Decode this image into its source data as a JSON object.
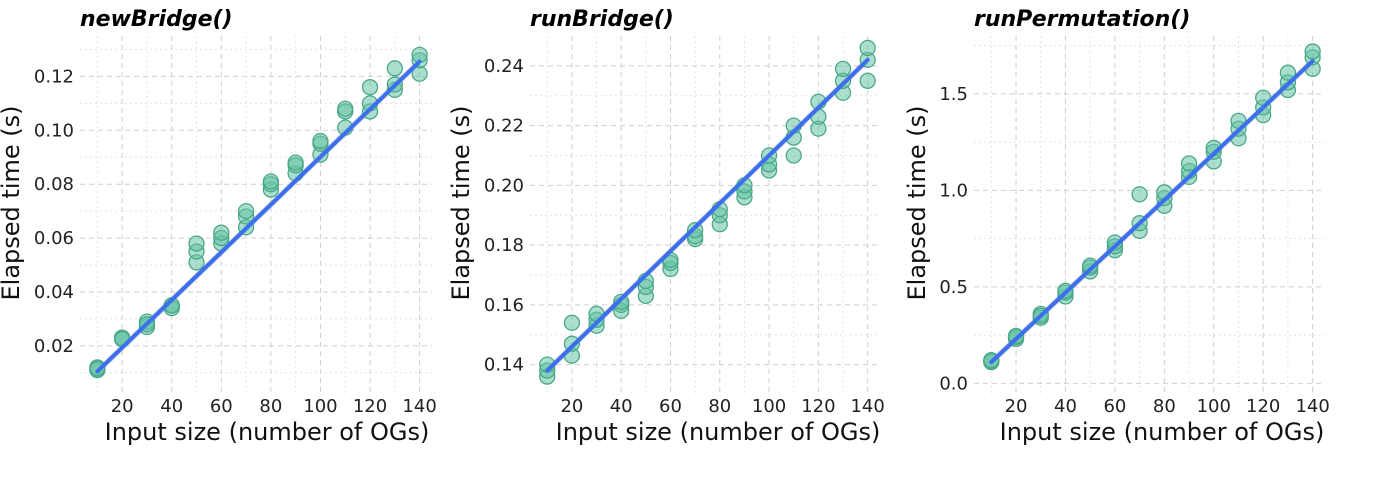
{
  "chart_data": [
    {
      "type": "scatter",
      "title": "newBridge()",
      "xlabel": "Input size (number of OGs)",
      "ylabel": "Elapsed time (s)",
      "xlim": [
        3,
        145
      ],
      "ylim": [
        0.0025,
        0.135
      ],
      "xticks": [
        20,
        40,
        60,
        80,
        100,
        120,
        140
      ],
      "xtick_labels": [
        "20",
        "40",
        "60",
        "80",
        "100",
        "120",
        "140"
      ],
      "yticks": [
        0.02,
        0.04,
        0.06,
        0.08,
        0.1,
        0.12
      ],
      "ytick_labels": [
        "0.02",
        "0.04",
        "0.06",
        "0.08",
        "0.10",
        "0.12"
      ],
      "grid": true,
      "fit": {
        "x": [
          10,
          140
        ],
        "y": [
          0.0105,
          0.1255
        ]
      },
      "series": [
        {
          "x": [
            10,
            10,
            10,
            20,
            20,
            20,
            30,
            30,
            30,
            40,
            40,
            40,
            50,
            50,
            50,
            60,
            60,
            60,
            70,
            70,
            70,
            80,
            80,
            80,
            90,
            90,
            90,
            100,
            100,
            100,
            110,
            110,
            110,
            120,
            120,
            120,
            130,
            130,
            130,
            140,
            140,
            140
          ],
          "y": [
            0.011,
            0.012,
            0.0115,
            0.023,
            0.023,
            0.0225,
            0.027,
            0.029,
            0.028,
            0.034,
            0.035,
            0.035,
            0.051,
            0.055,
            0.058,
            0.058,
            0.06,
            0.062,
            0.064,
            0.068,
            0.07,
            0.078,
            0.08,
            0.081,
            0.084,
            0.087,
            0.088,
            0.091,
            0.095,
            0.096,
            0.101,
            0.107,
            0.108,
            0.107,
            0.11,
            0.116,
            0.115,
            0.117,
            0.123,
            0.121,
            0.126,
            0.128
          ]
        }
      ]
    },
    {
      "type": "scatter",
      "title": "runBridge()",
      "xlabel": "Input size (number of OGs)",
      "ylabel": "Elapsed time (s)",
      "xlim": [
        3,
        145
      ],
      "ylim": [
        0.1305,
        0.25
      ],
      "xticks": [
        20,
        40,
        60,
        80,
        100,
        120,
        140
      ],
      "xtick_labels": [
        "20",
        "40",
        "60",
        "80",
        "100",
        "120",
        "140"
      ],
      "yticks": [
        0.14,
        0.16,
        0.18,
        0.2,
        0.22,
        0.24
      ],
      "ytick_labels": [
        "0.14",
        "0.16",
        "0.18",
        "0.20",
        "0.22",
        "0.24"
      ],
      "grid": true,
      "fit": {
        "x": [
          10,
          140
        ],
        "y": [
          0.138,
          0.242
        ]
      },
      "series": [
        {
          "x": [
            10,
            10,
            10,
            20,
            20,
            20,
            30,
            30,
            30,
            40,
            40,
            40,
            50,
            50,
            50,
            60,
            60,
            60,
            70,
            70,
            70,
            80,
            80,
            80,
            90,
            90,
            90,
            100,
            100,
            100,
            110,
            110,
            110,
            120,
            120,
            120,
            130,
            130,
            130,
            140,
            140,
            140
          ],
          "y": [
            0.136,
            0.138,
            0.14,
            0.143,
            0.147,
            0.154,
            0.153,
            0.155,
            0.157,
            0.158,
            0.16,
            0.161,
            0.163,
            0.166,
            0.168,
            0.172,
            0.174,
            0.175,
            0.182,
            0.183,
            0.185,
            0.187,
            0.19,
            0.192,
            0.196,
            0.198,
            0.2,
            0.205,
            0.207,
            0.21,
            0.21,
            0.216,
            0.22,
            0.219,
            0.223,
            0.228,
            0.231,
            0.235,
            0.239,
            0.235,
            0.242,
            0.246
          ]
        }
      ]
    },
    {
      "type": "scatter",
      "title": "runPermutation()",
      "xlabel": "Input size (number of OGs)",
      "ylabel": "Elapsed time (s)",
      "xlim": [
        3,
        145
      ],
      "ylim": [
        -0.05,
        1.8
      ],
      "xticks": [
        20,
        40,
        60,
        80,
        100,
        120,
        140
      ],
      "xtick_labels": [
        "20",
        "40",
        "60",
        "80",
        "100",
        "120",
        "140"
      ],
      "yticks": [
        0.0,
        0.5,
        1.0,
        1.5
      ],
      "ytick_labels": [
        "0.0",
        "0.5",
        "1.0",
        "1.5"
      ],
      "grid": true,
      "fit": {
        "x": [
          10,
          140
        ],
        "y": [
          0.11,
          1.67
        ]
      },
      "series": [
        {
          "x": [
            10,
            10,
            10,
            20,
            20,
            20,
            30,
            30,
            30,
            40,
            40,
            40,
            50,
            50,
            50,
            60,
            60,
            60,
            70,
            70,
            70,
            80,
            80,
            80,
            90,
            90,
            90,
            100,
            100,
            100,
            110,
            110,
            110,
            120,
            120,
            120,
            130,
            130,
            130,
            140,
            140,
            140
          ],
          "y": [
            0.11,
            0.115,
            0.12,
            0.23,
            0.24,
            0.245,
            0.34,
            0.36,
            0.35,
            0.45,
            0.47,
            0.48,
            0.58,
            0.6,
            0.61,
            0.69,
            0.71,
            0.73,
            0.79,
            0.83,
            0.98,
            0.92,
            0.96,
            0.99,
            1.07,
            1.1,
            1.14,
            1.15,
            1.2,
            1.22,
            1.27,
            1.32,
            1.36,
            1.39,
            1.43,
            1.48,
            1.52,
            1.56,
            1.61,
            1.63,
            1.69,
            1.72
          ]
        }
      ]
    }
  ]
}
